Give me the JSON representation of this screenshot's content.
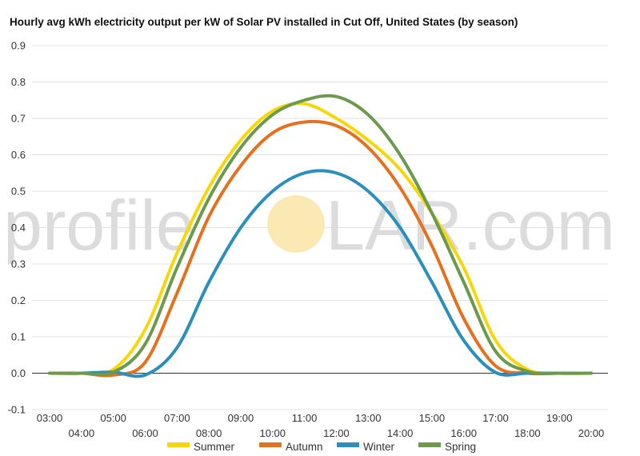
{
  "chart_data": {
    "type": "line",
    "title": "Hourly avg kWh electricity output per kW of Solar PV installed in Cut Off, United States (by season)",
    "xlabel": "",
    "ylabel": "",
    "x": [
      "03:00",
      "04:00",
      "05:00",
      "06:00",
      "07:00",
      "08:00",
      "09:00",
      "10:00",
      "11:00",
      "12:00",
      "13:00",
      "14:00",
      "15:00",
      "16:00",
      "17:00",
      "18:00",
      "19:00",
      "20:00"
    ],
    "ylim": [
      -0.1,
      0.9
    ],
    "yticks": [
      "-0.1",
      "0.0",
      "0.1",
      "0.2",
      "0.3",
      "0.4",
      "0.5",
      "0.6",
      "0.7",
      "0.8",
      "0.9"
    ],
    "grid": true,
    "legend_position": "bottom",
    "series": [
      {
        "name": "Summer",
        "color": "#f7d60a",
        "values": [
          0.0,
          0.0,
          0.01,
          0.12,
          0.33,
          0.51,
          0.64,
          0.72,
          0.74,
          0.7,
          0.64,
          0.56,
          0.44,
          0.29,
          0.09,
          0.01,
          0.0,
          0.0
        ]
      },
      {
        "name": "Autumn",
        "color": "#e5711f",
        "values": [
          0.0,
          0.0,
          -0.005,
          0.03,
          0.22,
          0.43,
          0.57,
          0.66,
          0.69,
          0.68,
          0.62,
          0.51,
          0.35,
          0.15,
          0.02,
          0.0,
          0.0,
          0.0
        ]
      },
      {
        "name": "Winter",
        "color": "#2a8fbd",
        "values": [
          0.0,
          0.0,
          0.003,
          -0.005,
          0.07,
          0.25,
          0.4,
          0.5,
          0.55,
          0.55,
          0.5,
          0.4,
          0.25,
          0.09,
          0.002,
          0.0,
          0.0,
          0.0
        ]
      },
      {
        "name": "Spring",
        "color": "#6b9a4e",
        "values": [
          0.0,
          0.0,
          0.003,
          0.08,
          0.29,
          0.48,
          0.62,
          0.71,
          0.75,
          0.76,
          0.71,
          0.6,
          0.44,
          0.25,
          0.06,
          0.005,
          0.0,
          0.0
        ]
      }
    ]
  },
  "watermark": {
    "left_text": "profile",
    "right_text": "LAR.com",
    "sun_color": "#fbe9b4"
  }
}
